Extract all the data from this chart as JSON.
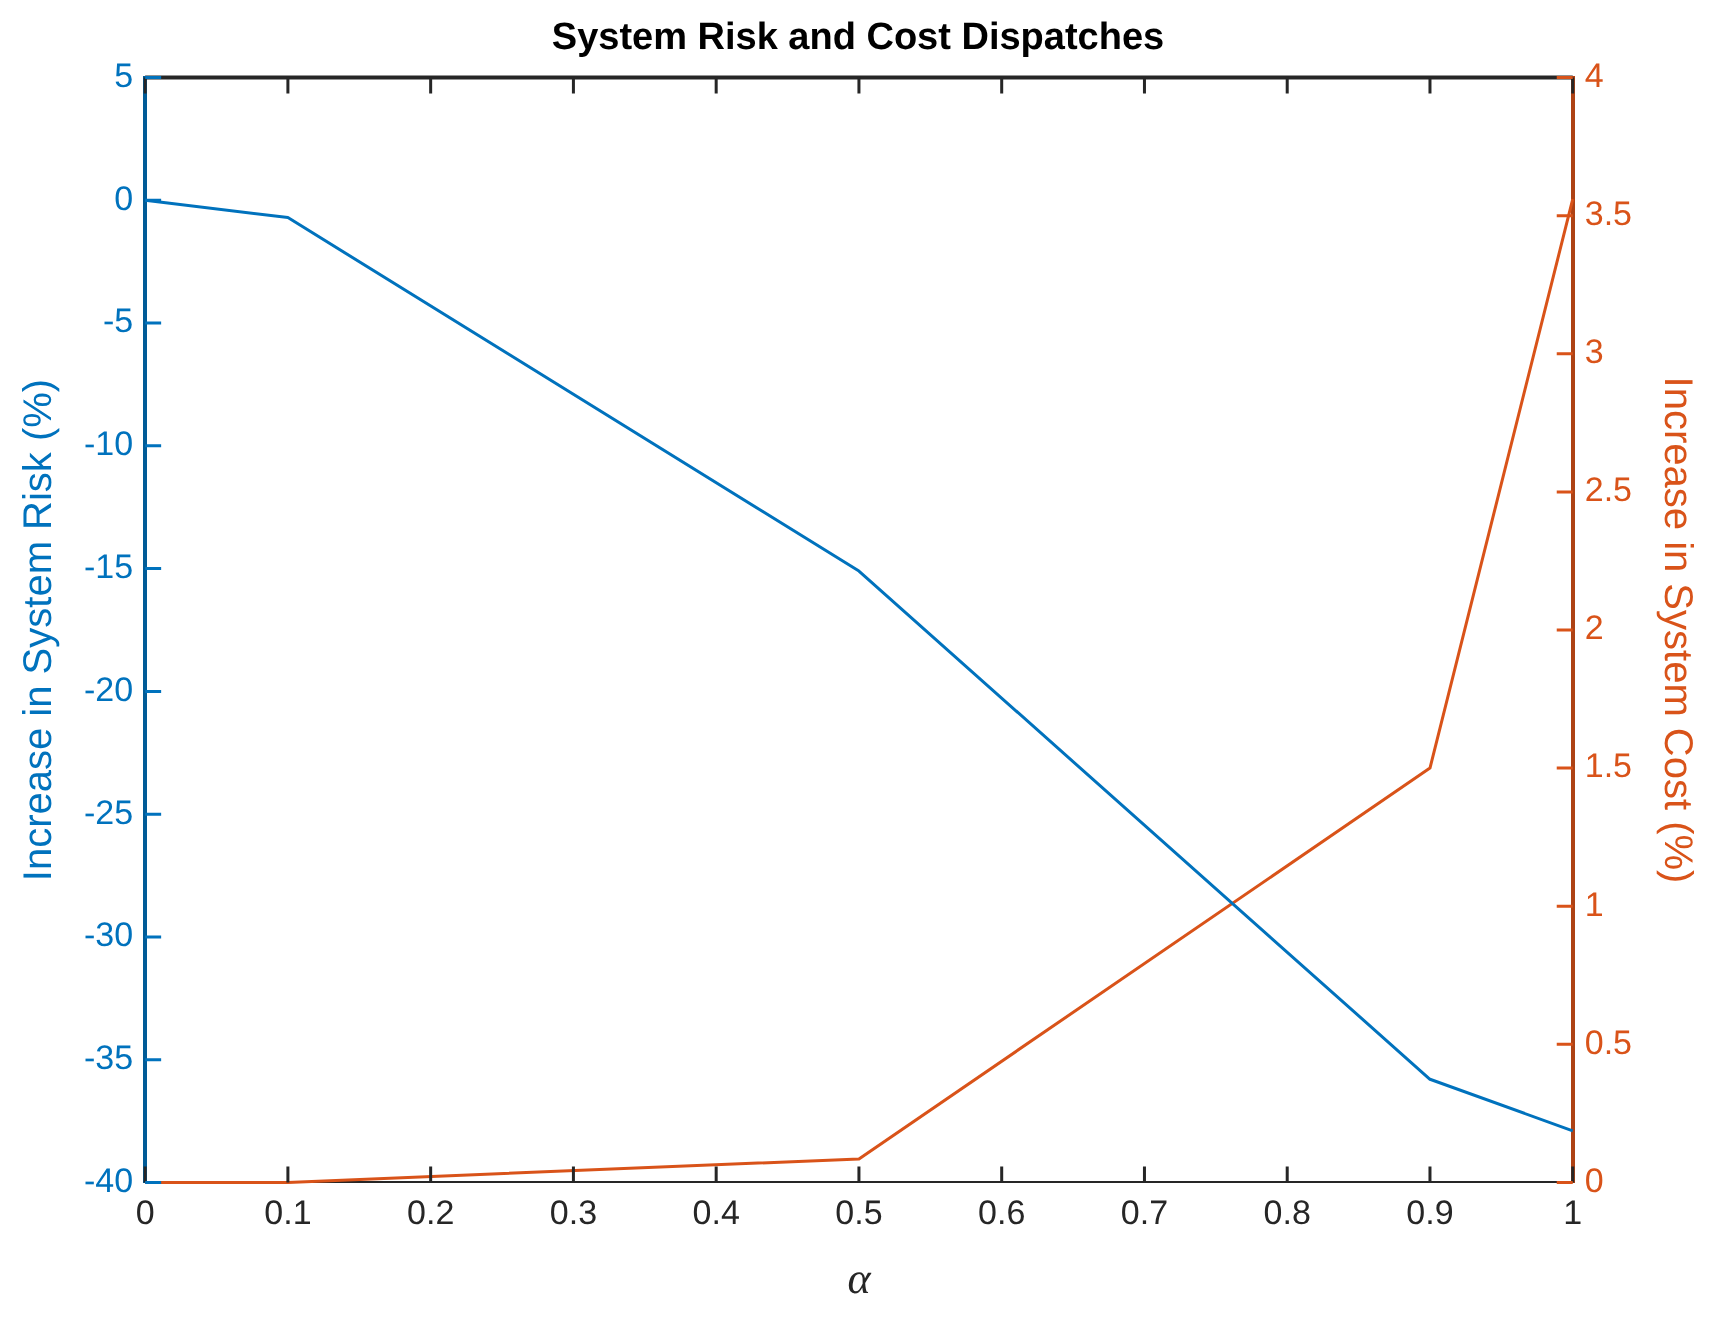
{
  "chart_data": {
    "type": "line",
    "title": "System Risk and Cost Dispatches",
    "xlabel": "α",
    "ylabel": "Increase in System Risk (%)",
    "y2label": "Increase in System Cost (%)",
    "x": [
      0,
      0.1,
      0.5,
      0.9,
      1
    ],
    "series": [
      {
        "color": "#0072bd",
        "values": [
          0,
          -0.7,
          -15.1,
          -35.8,
          -37.9
        ]
      },
      {
        "color": "#d95319",
        "values": [
          0,
          0,
          0.085,
          1.5,
          3.56
        ],
        "axis": "y2"
      }
    ],
    "xlim": [
      0,
      1
    ],
    "xticks": [
      0,
      0.1,
      0.2,
      0.3,
      0.4,
      0.5,
      0.6,
      0.7,
      0.8,
      0.9,
      1
    ],
    "ylim": [
      -40,
      5
    ],
    "yticks": [
      -40,
      -35,
      -30,
      -25,
      -20,
      -15,
      -10,
      -5,
      0,
      5
    ],
    "y2lim": [
      0,
      4
    ],
    "y2ticks": [
      0,
      0.5,
      1,
      1.5,
      2,
      2.5,
      3,
      3.5,
      4
    ],
    "grid": false,
    "legend": false,
    "marker": "none",
    "line_style": "solid"
  }
}
